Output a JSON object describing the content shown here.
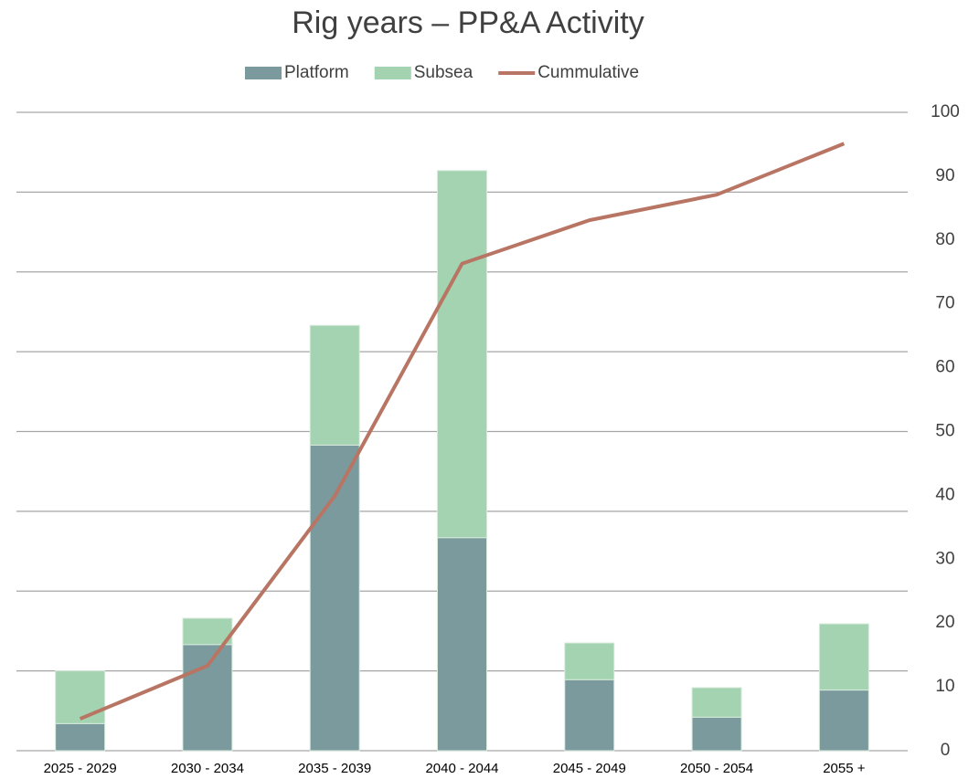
{
  "chart_data": {
    "type": "bar",
    "stacked": true,
    "title": "Rig years – PP&A Activity",
    "categories": [
      "2025 - 2029",
      "2030 - 2034",
      "2035 - 2039",
      "2040 - 2044",
      "2045 - 2049",
      "2050 - 2054",
      "2055 +"
    ],
    "series": [
      {
        "name": "Platform",
        "color": "#7a9a9e",
        "values": [
          3.4,
          13.3,
          38.3,
          26.7,
          8.9,
          4.2,
          7.6
        ]
      },
      {
        "name": "Subsea",
        "color": "#a3d3b0",
        "values": [
          6.6,
          3.3,
          15,
          46,
          4.6,
          3.7,
          8.3
        ]
      },
      {
        "name": "Cummulative",
        "color": "#b87563",
        "type": "line",
        "axis": "y2",
        "values": [
          5,
          13.3,
          39.9,
          76.3,
          83.1,
          87.1,
          95.1
        ]
      }
    ],
    "ylim": [
      0,
      80
    ],
    "yticks": [
      0,
      10,
      20,
      30,
      40,
      50,
      60,
      70,
      80
    ],
    "y_tick_labels": false,
    "y2lim": [
      0,
      100
    ],
    "y2ticks": [
      0,
      10,
      20,
      30,
      40,
      50,
      60,
      70,
      80,
      90,
      100
    ],
    "grid": true,
    "legend": "top"
  }
}
